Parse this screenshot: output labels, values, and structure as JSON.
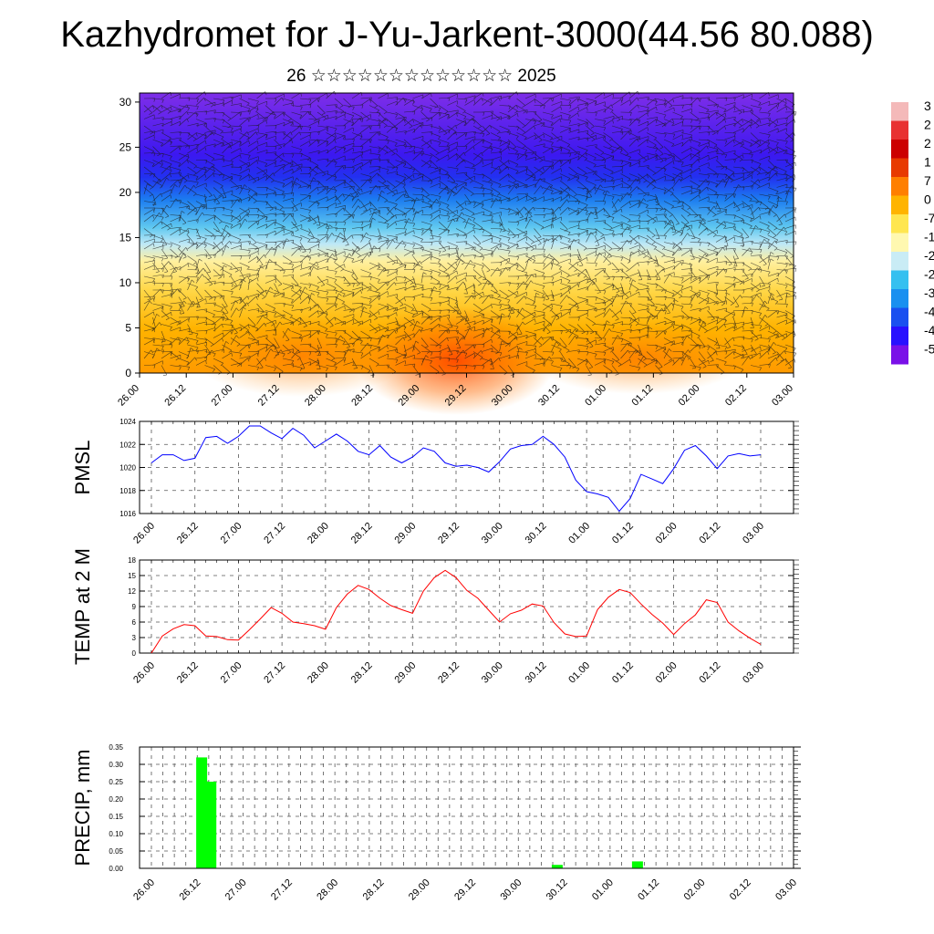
{
  "header": {
    "title": "Kazhydromet for J-Yu-Jarkent-3000(44.56 80.088)",
    "subtitle": "26 ☆☆☆☆☆☆☆☆☆☆☆☆☆ 2025"
  },
  "time_ticks": [
    "26.00",
    "26.12",
    "27.00",
    "27.12",
    "28.00",
    "28.12",
    "29.00",
    "29.12",
    "30.00",
    "30.12",
    "01.00",
    "01.12",
    "02.00",
    "02.12",
    "03.00"
  ],
  "colors": {
    "pmsl_line": "#0000ff",
    "temp_line": "#ff0000",
    "precip_bar": "#00ff00",
    "grid": "#555555"
  },
  "chart_data": [
    {
      "type": "heatmap",
      "name": "cross-section",
      "y_ticks": [
        0,
        5,
        10,
        15,
        20,
        25,
        30
      ],
      "ylim": [
        0,
        31
      ],
      "colorbar_labels": [
        "3",
        "2",
        "2",
        "1",
        "7",
        "0",
        "-7",
        "-1",
        "-2",
        "-2",
        "-3",
        "-4",
        "-4",
        "-5"
      ],
      "colorbar_colors": [
        "#f4b9b9",
        "#e83232",
        "#cc0000",
        "#e83a00",
        "#ff7f00",
        "#ffb400",
        "#ffe650",
        "#fff8b0",
        "#c9ecf5",
        "#35c0f0",
        "#1a90f0",
        "#1a50f0",
        "#2810ff",
        "#7a10e8"
      ]
    },
    {
      "type": "line",
      "name": "pmsl",
      "ylabel": "PMSL",
      "ylim": [
        1016,
        1024
      ],
      "y_ticks": [
        1016,
        1018,
        1020,
        1022,
        1024
      ],
      "values": [
        1020.4,
        1021.1,
        1021.1,
        1020.6,
        1020.8,
        1022.6,
        1022.7,
        1022.1,
        1022.7,
        1023.6,
        1023.6,
        1023.0,
        1022.5,
        1023.4,
        1022.8,
        1021.7,
        1022.3,
        1022.9,
        1022.3,
        1021.4,
        1021.1,
        1021.9,
        1020.9,
        1020.4,
        1020.9,
        1021.7,
        1021.4,
        1020.4,
        1020.1,
        1020.2,
        1020.0,
        1019.6,
        1020.5,
        1021.6,
        1021.9,
        1022.0,
        1022.7,
        1022.0,
        1020.9,
        1018.9,
        1017.9,
        1017.7,
        1017.4,
        1016.2,
        1017.3,
        1019.4,
        1019.0,
        1018.6,
        1019.9,
        1021.5,
        1021.9,
        1021.0,
        1019.9,
        1021.0,
        1021.2,
        1021.0,
        1021.1
      ]
    },
    {
      "type": "line",
      "name": "temp",
      "ylabel": "TEMP at 2 M",
      "ylim": [
        0,
        18
      ],
      "y_ticks": [
        0,
        3,
        6,
        9,
        12,
        15,
        18
      ],
      "values": [
        0.0,
        3.3,
        4.7,
        5.5,
        5.3,
        3.3,
        3.2,
        2.6,
        2.5,
        4.5,
        6.6,
        8.8,
        7.7,
        6.0,
        5.7,
        5.3,
        4.6,
        8.8,
        11.4,
        13.1,
        12.3,
        10.6,
        9.2,
        8.4,
        7.7,
        12.0,
        14.6,
        16.0,
        14.6,
        12.1,
        10.6,
        8.3,
        6.0,
        7.6,
        8.3,
        9.5,
        9.1,
        5.9,
        3.7,
        3.2,
        3.3,
        8.4,
        10.8,
        12.3,
        11.7,
        9.5,
        7.5,
        5.8,
        3.6,
        5.7,
        7.4,
        10.3,
        9.8,
        6.0,
        4.3,
        2.9,
        1.7
      ]
    },
    {
      "type": "bar",
      "name": "precip",
      "ylabel": "PRECIP, mm",
      "ylim": [
        0,
        0.35
      ],
      "y_ticks": [
        "0.00",
        "0.05",
        "0.10",
        "0.15",
        "0.20",
        "0.25",
        "0.30",
        "0.35"
      ],
      "bars": [
        {
          "x": 1.0,
          "value": 0.32
        },
        {
          "x": 1.4,
          "value": 0.25
        },
        {
          "x": 16.5,
          "value": 0.01
        },
        {
          "x": 20.0,
          "value": 0.02
        }
      ]
    }
  ]
}
